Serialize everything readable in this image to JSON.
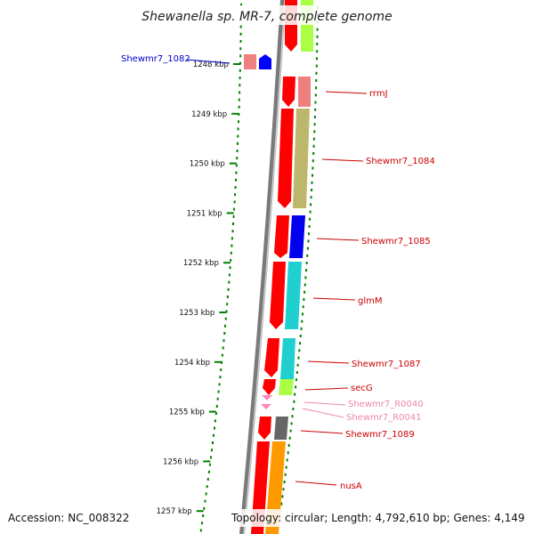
{
  "title": "Shewanella sp. MR-7, complete genome",
  "footer": {
    "accession": "Accession: NC_008322",
    "topology": "Topology: circular; Length: 4,792,610 bp; Genes: 4,149"
  },
  "ticks": [
    "1248 kbp",
    "1249 kbp",
    "1250 kbp",
    "1251 kbp",
    "1252 kbp",
    "1253 kbp",
    "1254 kbp",
    "1255 kbp",
    "1256 kbp",
    "1257 kbp"
  ],
  "genes": [
    {
      "label": "Shewmr7_1082",
      "color": "#0000cc"
    },
    {
      "label": "rrmJ",
      "color": "#cc0000"
    },
    {
      "label": "Shewmr7_1084",
      "color": "#cc0000"
    },
    {
      "label": "Shewmr7_1085",
      "color": "#cc0000"
    },
    {
      "label": "glmM",
      "color": "#cc0000"
    },
    {
      "label": "Shewmr7_1087",
      "color": "#cc0000"
    },
    {
      "label": "secG",
      "color": "#cc0000"
    },
    {
      "label": "Shewmr7_R0040",
      "color": "#ee88aa"
    },
    {
      "label": "Shewmr7_R0041",
      "color": "#ee88aa"
    },
    {
      "label": "Shewmr7_1089",
      "color": "#cc0000"
    },
    {
      "label": "nusA",
      "color": "#cc0000"
    }
  ],
  "colors": {
    "backbone": "#808080",
    "dots": "#008000",
    "cds": "#ff0000",
    "trna": "#ff88bb"
  }
}
